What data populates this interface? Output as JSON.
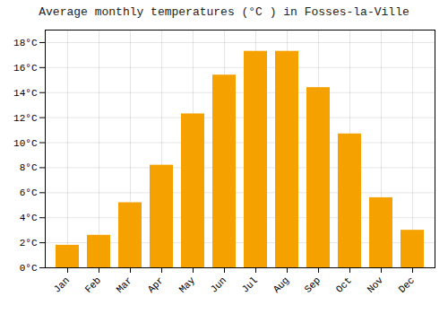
{
  "chart_data": {
    "type": "bar",
    "title": "Average monthly temperatures (°C ) in Fosses-la-Ville",
    "categories": [
      "Jan",
      "Feb",
      "Mar",
      "Apr",
      "May",
      "Jun",
      "Jul",
      "Aug",
      "Sep",
      "Oct",
      "Nov",
      "Dec"
    ],
    "values": [
      1.8,
      2.6,
      5.2,
      8.2,
      12.3,
      15.4,
      17.3,
      17.3,
      14.4,
      10.7,
      5.6,
      3.0
    ],
    "color": "#F5A200",
    "ylim": [
      0,
      19
    ],
    "yticks": [
      {
        "value": 0,
        "label": "0°C"
      },
      {
        "value": 2,
        "label": "2°C"
      },
      {
        "value": 4,
        "label": "4°C"
      },
      {
        "value": 6,
        "label": "6°C"
      },
      {
        "value": 8,
        "label": "8°C"
      },
      {
        "value": 10,
        "label": "10°C"
      },
      {
        "value": 12,
        "label": "12°C"
      },
      {
        "value": 14,
        "label": "14°C"
      },
      {
        "value": 16,
        "label": "16°C"
      },
      {
        "value": 18,
        "label": "18°C"
      }
    ],
    "grid": true
  }
}
